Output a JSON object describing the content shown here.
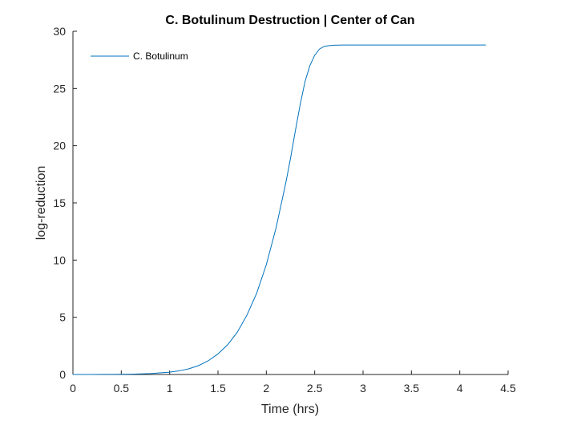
{
  "chart_data": {
    "type": "line",
    "title": "C. Botulinum Destruction | Center of Can",
    "xlabel": "Time (hrs)",
    "ylabel": "log-reduction",
    "xlim": [
      0,
      4.5
    ],
    "ylim": [
      0,
      30
    ],
    "xticks": [
      "0",
      "0.5",
      "1",
      "1.5",
      "2",
      "2.5",
      "3",
      "3.5",
      "4",
      "4.5"
    ],
    "yticks": [
      "0",
      "5",
      "10",
      "15",
      "20",
      "25",
      "30"
    ],
    "grid": false,
    "legend_position": "top-left",
    "series": [
      {
        "name": "C. Botulinum",
        "color": "#0072BD",
        "x": [
          0,
          0.2,
          0.4,
          0.6,
          0.8,
          1.0,
          1.1,
          1.2,
          1.3,
          1.4,
          1.5,
          1.6,
          1.7,
          1.8,
          1.9,
          2.0,
          2.1,
          2.2,
          2.25,
          2.3,
          2.35,
          2.4,
          2.45,
          2.5,
          2.55,
          2.6,
          2.65,
          2.7,
          2.8,
          3.0,
          3.5,
          4.0,
          4.27
        ],
        "y": [
          0,
          0,
          0.01,
          0.03,
          0.08,
          0.2,
          0.32,
          0.5,
          0.78,
          1.2,
          1.8,
          2.6,
          3.7,
          5.2,
          7.1,
          9.6,
          12.8,
          16.7,
          18.9,
          21.3,
          23.6,
          25.6,
          27.0,
          27.9,
          28.45,
          28.68,
          28.75,
          28.78,
          28.8,
          28.8,
          28.8,
          28.8,
          28.8
        ]
      }
    ]
  }
}
